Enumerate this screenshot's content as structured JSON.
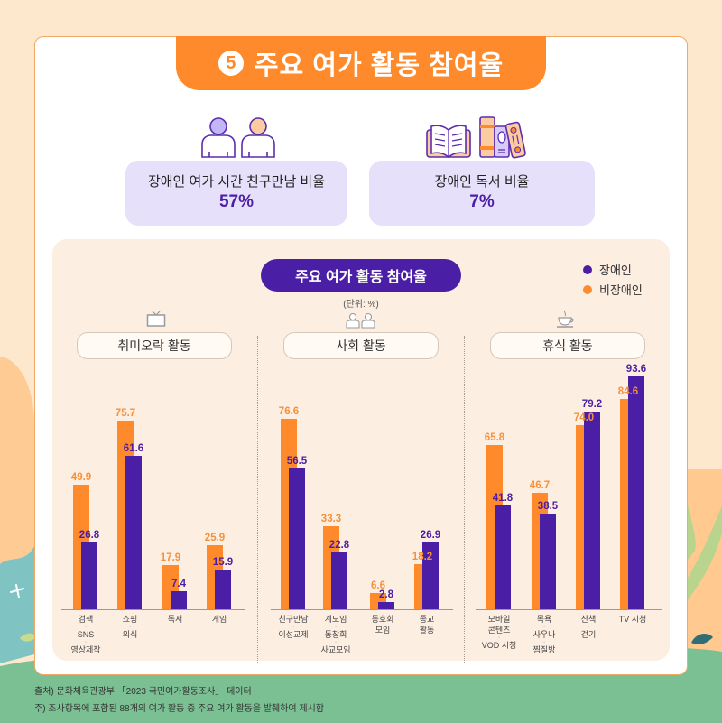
{
  "header": {
    "number": "5",
    "title": "주요 여가 활동 참여율"
  },
  "stats": [
    {
      "label": "장애인 여가 시간 친구만남 비율",
      "value": "57%",
      "icon": "people-icon"
    },
    {
      "label": "장애인 독서 비율",
      "value": "7%",
      "icon": "books-icon"
    }
  ],
  "colors": {
    "accent": "#FF8A2B",
    "primary": "#4B1FA5",
    "stat_card": "#E7E0FB",
    "panel": "#FDEEE2"
  },
  "chart_data": {
    "type": "bar",
    "title": "주요 여가 활동 참여율",
    "unit_label": "(단위: %)",
    "xlabel": "",
    "ylabel": "%",
    "ylim": [
      0,
      100
    ],
    "grid": false,
    "legend": {
      "position": "top-right",
      "items": [
        {
          "name": "장애인",
          "color": "#4B1FA5"
        },
        {
          "name": "비장애인",
          "color": "#FF8A2B"
        }
      ]
    },
    "groups": [
      {
        "title": "취미오락 활동",
        "icon": "tv-icon",
        "category_indices": [
          0,
          1,
          2,
          3
        ]
      },
      {
        "title": "사회 활동",
        "icon": "people-icon",
        "category_indices": [
          4,
          5,
          6,
          7
        ]
      },
      {
        "title": "휴식 활동",
        "icon": "coffee-cup-icon",
        "category_indices": [
          8,
          9,
          10,
          11
        ]
      }
    ],
    "categories": [
      "검색·SNS·영상제작",
      "쇼핑·외식",
      "독서",
      "게임",
      "친구만남·이성교제",
      "계모임·동창회·사교모임",
      "동호회 모임",
      "종교 활동",
      "모바일 콘텐츠·VOD 시청",
      "목욕·사우나·찜질방",
      "산책·걷기",
      "TV 시청"
    ],
    "category_label_lines": [
      [
        "검색",
        "·",
        "SNS",
        "·",
        "영상제작"
      ],
      [
        "쇼핑",
        "·",
        "외식"
      ],
      [
        "독서"
      ],
      [
        "게임"
      ],
      [
        "친구만남",
        "·",
        "이성교제"
      ],
      [
        "계모임",
        "·",
        "동창회",
        "·",
        "사교모임"
      ],
      [
        "동호회",
        "모임"
      ],
      [
        "종교",
        "활동"
      ],
      [
        "모바일",
        "콘텐츠",
        "·",
        "VOD 시청"
      ],
      [
        "목욕",
        "·",
        "사우나",
        "·",
        "찜질방"
      ],
      [
        "산책",
        "·",
        "걷기"
      ],
      [
        "TV 시청"
      ]
    ],
    "series": [
      {
        "name": "장애인",
        "color": "#4B1FA5",
        "values": [
          26.8,
          61.6,
          7.4,
          15.9,
          56.5,
          22.8,
          2.8,
          26.9,
          41.8,
          38.5,
          79.2,
          93.6
        ]
      },
      {
        "name": "비장애인",
        "color": "#FF8A2B",
        "values": [
          49.9,
          75.7,
          17.9,
          25.9,
          76.6,
          33.3,
          6.6,
          18.2,
          65.8,
          46.7,
          74.0,
          84.6
        ]
      }
    ]
  },
  "footnotes": {
    "source": "출처) 문화체육관광부 「2023 국민여가활동조사」 데이터",
    "note": "주) 조사항목에 포함된 88개의 여가 활동 중 주요 여가 활동을 발췌하여 제시함"
  }
}
